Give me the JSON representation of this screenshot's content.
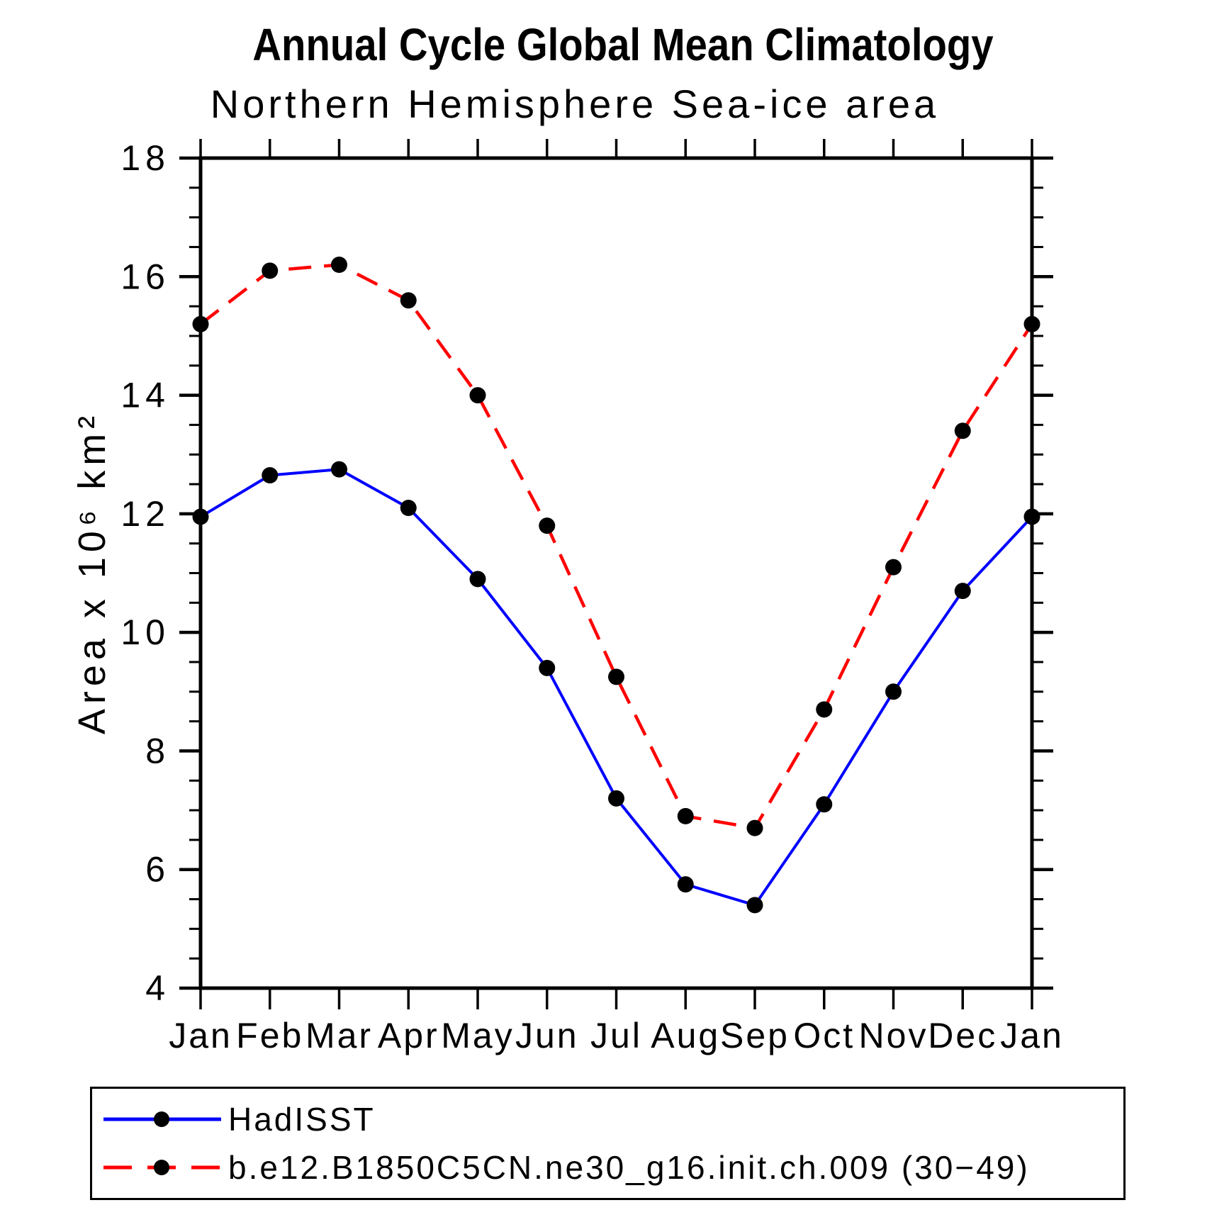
{
  "chart_data": {
    "type": "line",
    "title": "Annual Cycle Global Mean Climatology",
    "subtitle": "Northern Hemisphere Sea-ice area",
    "ylabel": "Area x 10⁶ km²",
    "xlabel": "",
    "categories": [
      "Jan",
      "Feb",
      "Mar",
      "Apr",
      "May",
      "Jun",
      "Jul",
      "Aug",
      "Sep",
      "Oct",
      "Nov",
      "Dec",
      "Jan"
    ],
    "ylim": [
      4,
      18
    ],
    "y_major_ticks": [
      4,
      6,
      8,
      10,
      12,
      14,
      16,
      18
    ],
    "y_minor_step": 0.5,
    "grid": false,
    "legend_position": "bottom",
    "axis_color": "#000000",
    "marker_color": "#000000",
    "series": [
      {
        "name": "HadISST",
        "color": "#0000ff",
        "style": "solid",
        "marker": "circle",
        "values": [
          11.95,
          12.65,
          12.75,
          12.1,
          10.9,
          9.4,
          7.2,
          5.75,
          5.4,
          7.1,
          9.0,
          10.7,
          11.95
        ]
      },
      {
        "name": "b.e12.B1850C5CN.ne30_g16.init.ch.009 (30−49)",
        "color": "#ff0000",
        "style": "dashed",
        "marker": "circle",
        "values": [
          15.2,
          16.1,
          16.2,
          15.6,
          14.0,
          11.8,
          9.25,
          6.9,
          6.7,
          8.7,
          11.1,
          13.4,
          15.2
        ]
      }
    ]
  }
}
